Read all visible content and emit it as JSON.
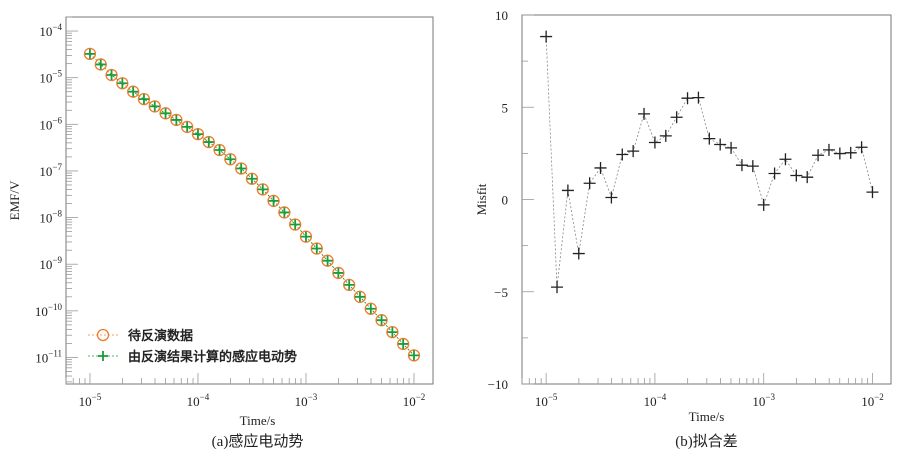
{
  "chart_data": [
    {
      "type": "scatter",
      "caption": "(a)感应电动势",
      "xlabel": "Time/s",
      "ylabel": "EMF/V",
      "xscale": "log",
      "yscale": "log",
      "xlim": [
        6e-06,
        0.015
      ],
      "ylim": [
        2.7e-12,
        0.0002
      ],
      "x_ticks": [
        {
          "base": "10",
          "exp": "−5",
          "value": 1e-05
        },
        {
          "base": "10",
          "exp": "−4",
          "value": 0.0001
        },
        {
          "base": "10",
          "exp": "−3",
          "value": 0.001
        },
        {
          "base": "10",
          "exp": "−2",
          "value": 0.01
        }
      ],
      "y_ticks": [
        {
          "base": "10",
          "exp": "−4",
          "value": 0.0001
        },
        {
          "base": "10",
          "exp": "−5",
          "value": 1e-05
        },
        {
          "base": "10",
          "exp": "−6",
          "value": 1e-06
        },
        {
          "base": "10",
          "exp": "−7",
          "value": 1e-07
        },
        {
          "base": "10",
          "exp": "−8",
          "value": 1e-08
        },
        {
          "base": "10",
          "exp": "−9",
          "value": 1e-09
        },
        {
          "base": "10",
          "exp": "−10",
          "value": 1e-10
        },
        {
          "base": "10",
          "exp": "−11",
          "value": 1e-11
        }
      ],
      "legend_position": "bottom-left",
      "x": [
        1e-05,
        1.259e-05,
        1.585e-05,
        1.995e-05,
        2.512e-05,
        3.162e-05,
        3.981e-05,
        5.012e-05,
        6.31e-05,
        7.943e-05,
        0.0001,
        0.0001259,
        0.0001585,
        0.0001995,
        0.0002512,
        0.0003162,
        0.0003981,
        0.0005012,
        0.000631,
        0.0007943,
        0.001,
        0.001259,
        0.001585,
        0.001995,
        0.002512,
        0.003162,
        0.003981,
        0.005012,
        0.00631,
        0.007943,
        0.01
      ],
      "series": [
        {
          "name": "待反演数据",
          "color": "#f07b2c",
          "marker": "circle",
          "values": [
            3.24e-05,
            1.92e-05,
            1.14e-05,
            7.6e-06,
            5e-06,
            3.47e-06,
            2.42e-06,
            1.72e-06,
            1.24e-06,
            8.8e-07,
            6.15e-07,
            4.16e-07,
            2.81e-07,
            1.78e-07,
            1.13e-07,
            6.8e-08,
            4.03e-08,
            2.28e-08,
            1.29e-08,
            7.1e-09,
            3.9e-09,
            2.17e-09,
            1.19e-09,
            6.5e-10,
            3.6e-10,
            2e-10,
            1.11e-10,
            6.3e-11,
            3.5e-11,
            1.95e-11,
            1.11e-11
          ]
        },
        {
          "name": "由反演结果计算的感应电动势",
          "color": "#1a9c3a",
          "marker": "plus",
          "values": [
            3.24e-05,
            1.92e-05,
            1.14e-05,
            7.6e-06,
            5e-06,
            3.47e-06,
            2.42e-06,
            1.72e-06,
            1.24e-06,
            8.8e-07,
            6.15e-07,
            4.16e-07,
            2.81e-07,
            1.78e-07,
            1.13e-07,
            6.8e-08,
            4.03e-08,
            2.28e-08,
            1.29e-08,
            7.1e-09,
            3.9e-09,
            2.17e-09,
            1.19e-09,
            6.5e-10,
            3.6e-10,
            2e-10,
            1.11e-10,
            6.3e-11,
            3.5e-11,
            1.95e-11,
            1.11e-11
          ]
        }
      ]
    },
    {
      "type": "line",
      "caption": "(b)拟合差",
      "xlabel": "Time/s",
      "ylabel": "Misfit",
      "xscale": "log",
      "xlim": [
        6e-06,
        0.0148
      ],
      "ylim": [
        -10,
        10
      ],
      "x_ticks": [
        {
          "base": "10",
          "exp": "−5",
          "value": 1e-05
        },
        {
          "base": "10",
          "exp": "−4",
          "value": 0.0001
        },
        {
          "base": "10",
          "exp": "−3",
          "value": 0.001
        },
        {
          "base": "10",
          "exp": "−2",
          "value": 0.01
        }
      ],
      "y_ticks": [
        {
          "label": "10",
          "value": 10
        },
        {
          "label": "5",
          "value": 5
        },
        {
          "label": "0",
          "value": 0
        },
        {
          "label": "−5",
          "value": -5
        },
        {
          "label": "−10",
          "value": -10
        }
      ],
      "color": "#222222",
      "x": [
        1e-05,
        1.259e-05,
        1.585e-05,
        1.995e-05,
        2.512e-05,
        3.162e-05,
        3.981e-05,
        5.012e-05,
        6.31e-05,
        7.943e-05,
        0.0001,
        0.0001259,
        0.0001585,
        0.0001995,
        0.0002512,
        0.0003162,
        0.0003981,
        0.0005012,
        0.000631,
        0.0007943,
        0.001,
        0.001259,
        0.001585,
        0.001995,
        0.002512,
        0.003162,
        0.003981,
        0.005012,
        0.00631,
        0.007943,
        0.01
      ],
      "values": [
        8.83,
        -4.75,
        0.49,
        -2.93,
        0.88,
        1.71,
        0.11,
        2.44,
        2.62,
        4.64,
        3.09,
        3.45,
        4.46,
        5.49,
        5.52,
        3.3,
        2.98,
        2.8,
        1.86,
        1.81,
        -0.29,
        1.41,
        2.18,
        1.3,
        1.21,
        2.4,
        2.69,
        2.49,
        2.53,
        2.83,
        0.4
      ]
    }
  ]
}
